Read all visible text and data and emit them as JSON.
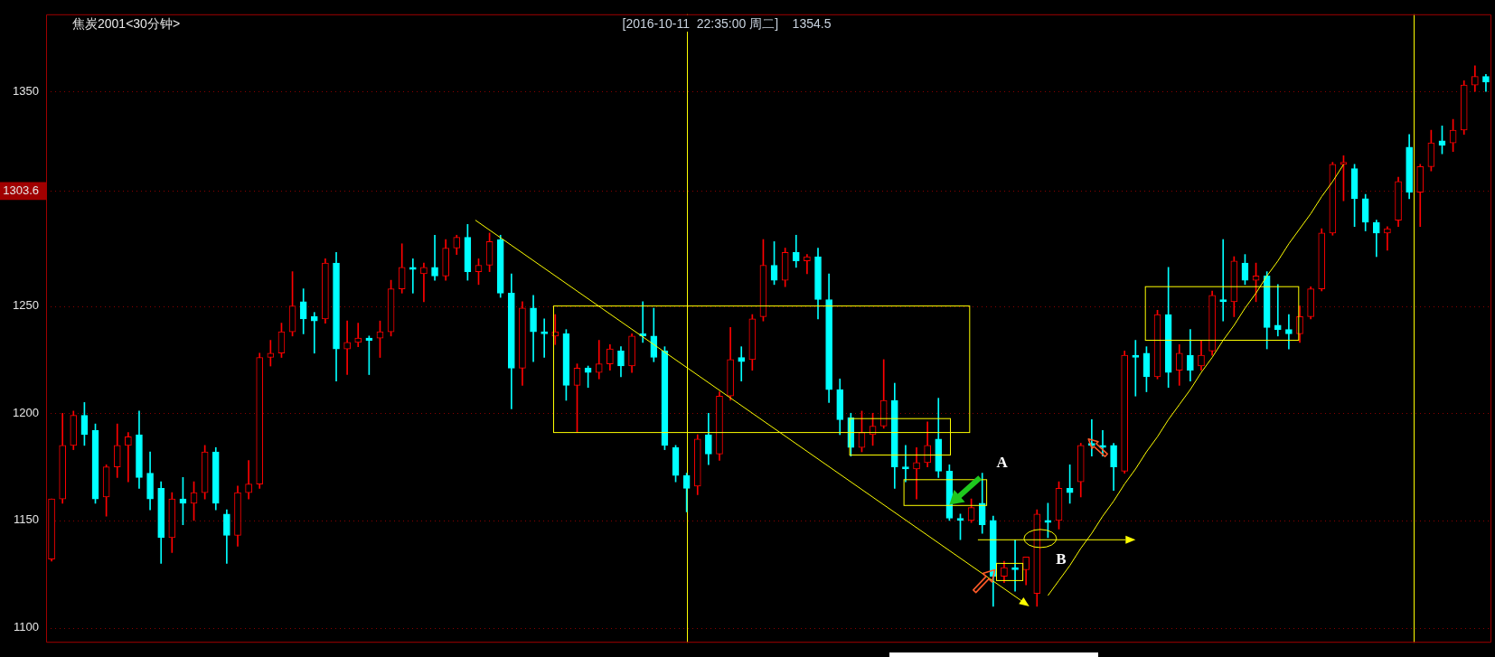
{
  "chart_data": {
    "type": "candlestick",
    "title": "焦炭2001<30分钟>",
    "subtitle": "[2016-10-11  22:35:00 周二]    1354.5",
    "categories": [
      null,
      null,
      null,
      null,
      null,
      null,
      null,
      null,
      null,
      null,
      null,
      null,
      null,
      null,
      null,
      null,
      null,
      null,
      null,
      null,
      null,
      null,
      null,
      null,
      null,
      null,
      null,
      null,
      null,
      null,
      null,
      null,
      null,
      null,
      null,
      null,
      null,
      null,
      null,
      null,
      null,
      null,
      null,
      null,
      null,
      null,
      null,
      null,
      null,
      null,
      null,
      null,
      null,
      null,
      null,
      null,
      null,
      null,
      null,
      null,
      null,
      null,
      null,
      null,
      null,
      null,
      null,
      null,
      null,
      null,
      null,
      null,
      null,
      null,
      null,
      null,
      null,
      null,
      null,
      null,
      null,
      null,
      null,
      null,
      null,
      null,
      null,
      null,
      null,
      null,
      null,
      null,
      null,
      null,
      null,
      null,
      null,
      null,
      null,
      null,
      null,
      null,
      null,
      null,
      null,
      null,
      null,
      null,
      null,
      null,
      null,
      null,
      null,
      null,
      null,
      null,
      null,
      null,
      null,
      null,
      null,
      null,
      null,
      null,
      null,
      null,
      null,
      null,
      null,
      null,
      null,
      null
    ],
    "ohlc": [
      [
        1132,
        1160,
        1131,
        1160
      ],
      [
        1160,
        1200,
        1158,
        1185
      ],
      [
        1185,
        1201,
        1183,
        1199
      ],
      [
        1199,
        1205,
        1185,
        1190
      ],
      [
        1192,
        1195,
        1158,
        1160
      ],
      [
        1161,
        1176,
        1152,
        1175
      ],
      [
        1175,
        1195,
        1170,
        1185
      ],
      [
        1185,
        1191,
        1168,
        1189
      ],
      [
        1190,
        1201,
        1165,
        1170
      ],
      [
        1172,
        1182,
        1155,
        1160
      ],
      [
        1165,
        1168,
        1130,
        1142
      ],
      [
        1142,
        1163,
        1135,
        1160
      ],
      [
        1160,
        1170,
        1148,
        1158
      ],
      [
        1158,
        1168,
        1150,
        1163
      ],
      [
        1163,
        1185,
        1160,
        1182
      ],
      [
        1182,
        1184,
        1155,
        1158
      ],
      [
        1153,
        1155,
        1130,
        1143
      ],
      [
        1143,
        1166,
        1138,
        1163
      ],
      [
        1163,
        1178,
        1160,
        1167
      ],
      [
        1167,
        1228,
        1165,
        1226
      ],
      [
        1226,
        1234,
        1222,
        1228
      ],
      [
        1228,
        1242,
        1226,
        1238
      ],
      [
        1238,
        1266,
        1236,
        1250
      ],
      [
        1252,
        1258,
        1237,
        1244
      ],
      [
        1245,
        1247,
        1228,
        1243
      ],
      [
        1244,
        1272,
        1242,
        1270
      ],
      [
        1270,
        1275,
        1215,
        1230
      ],
      [
        1230,
        1243,
        1218,
        1233
      ],
      [
        1233,
        1242,
        1231,
        1235
      ],
      [
        1235,
        1236,
        1218,
        1234
      ],
      [
        1235,
        1243,
        1226,
        1238
      ],
      [
        1238,
        1262,
        1236,
        1258
      ],
      [
        1258,
        1279,
        1256,
        1268
      ],
      [
        1268,
        1272,
        1256,
        1267
      ],
      [
        1265,
        1270,
        1252,
        1268
      ],
      [
        1268,
        1283,
        1262,
        1264
      ],
      [
        1264,
        1281,
        1262,
        1277
      ],
      [
        1277,
        1283,
        1274,
        1282
      ],
      [
        1282,
        1288,
        1262,
        1266
      ],
      [
        1266,
        1272,
        1260,
        1269
      ],
      [
        1269,
        1284,
        1266,
        1280
      ],
      [
        1281,
        1283,
        1254,
        1256
      ],
      [
        1256,
        1265,
        1202,
        1221
      ],
      [
        1221,
        1252,
        1213,
        1249
      ],
      [
        1249,
        1255,
        1224,
        1238
      ],
      [
        1238,
        1244,
        1226,
        1237
      ],
      [
        1236,
        1246,
        1232,
        1238
      ],
      [
        1237,
        1239,
        1206,
        1213
      ],
      [
        1213,
        1223,
        1191,
        1221
      ],
      [
        1221,
        1222,
        1212,
        1219
      ],
      [
        1219,
        1234,
        1216,
        1223
      ],
      [
        1223,
        1232,
        1220,
        1230
      ],
      [
        1229,
        1231,
        1217,
        1222
      ],
      [
        1222,
        1237,
        1219,
        1236
      ],
      [
        1237,
        1252,
        1233,
        1236
      ],
      [
        1236,
        1249,
        1224,
        1226
      ],
      [
        1229,
        1231,
        1183,
        1185
      ],
      [
        1184,
        1185,
        1168,
        1171
      ],
      [
        1171,
        1172,
        1154,
        1165
      ],
      [
        1166,
        1190,
        1162,
        1188
      ],
      [
        1190,
        1200,
        1176,
        1181
      ],
      [
        1181,
        1210,
        1178,
        1208
      ],
      [
        1208,
        1240,
        1206,
        1225
      ],
      [
        1226,
        1231,
        1215,
        1224
      ],
      [
        1225,
        1246,
        1220,
        1244
      ],
      [
        1245,
        1281,
        1243,
        1269
      ],
      [
        1269,
        1280,
        1260,
        1262
      ],
      [
        1262,
        1277,
        1259,
        1275
      ],
      [
        1275,
        1283,
        1268,
        1271
      ],
      [
        1271,
        1274,
        1265,
        1273
      ],
      [
        1273,
        1277,
        1244,
        1253
      ],
      [
        1253,
        1265,
        1205,
        1211
      ],
      [
        1211,
        1216,
        1190,
        1197
      ],
      [
        1198,
        1200,
        1180,
        1184
      ],
      [
        1184,
        1201,
        1182,
        1191
      ],
      [
        1190,
        1200,
        1185,
        1194
      ],
      [
        1194,
        1225,
        1193,
        1206
      ],
      [
        1206,
        1214,
        1165,
        1175
      ],
      [
        1175,
        1185,
        1168,
        1174
      ],
      [
        1174,
        1184,
        1160,
        1177
      ],
      [
        1177,
        1196,
        1175,
        1185
      ],
      [
        1188,
        1207,
        1170,
        1173
      ],
      [
        1173,
        1176,
        1150,
        1151
      ],
      [
        1151,
        1153,
        1141,
        1150
      ],
      [
        1150,
        1160,
        1149,
        1156
      ],
      [
        1158,
        1172,
        1144,
        1148
      ],
      [
        1150,
        1152,
        1110,
        1124
      ],
      [
        1124,
        1131,
        1121,
        1128
      ],
      [
        1128,
        1141,
        1117,
        1127
      ],
      [
        1127,
        1133,
        1120,
        1133
      ],
      [
        1116,
        1155,
        1110,
        1153
      ],
      [
        1150,
        1158,
        1142,
        1149
      ],
      [
        1150,
        1168,
        1146,
        1165
      ],
      [
        1165,
        1176,
        1158,
        1163
      ],
      [
        1168,
        1186,
        1161,
        1185
      ],
      [
        1186,
        1197,
        1180,
        1185
      ],
      [
        1185,
        1192,
        1180,
        1184
      ],
      [
        1185,
        1186,
        1164,
        1175
      ],
      [
        1173,
        1229,
        1172,
        1227
      ],
      [
        1227,
        1234,
        1208,
        1226
      ],
      [
        1228,
        1231,
        1210,
        1217
      ],
      [
        1217,
        1248,
        1216,
        1246
      ],
      [
        1246,
        1268,
        1212,
        1219
      ],
      [
        1220,
        1232,
        1213,
        1228
      ],
      [
        1227,
        1239,
        1215,
        1220
      ],
      [
        1222,
        1234,
        1220,
        1227
      ],
      [
        1229,
        1257,
        1227,
        1255
      ],
      [
        1253,
        1281,
        1243,
        1252
      ],
      [
        1252,
        1273,
        1245,
        1271
      ],
      [
        1270,
        1274,
        1260,
        1262
      ],
      [
        1262,
        1270,
        1252,
        1264
      ],
      [
        1264,
        1266,
        1230,
        1240
      ],
      [
        1241,
        1260,
        1236,
        1239
      ],
      [
        1239,
        1246,
        1230,
        1237
      ],
      [
        1237,
        1250,
        1233,
        1245
      ],
      [
        1245,
        1259,
        1244,
        1258
      ],
      [
        1258,
        1286,
        1257,
        1284
      ],
      [
        1284,
        1317,
        1283,
        1316
      ],
      [
        1316,
        1320,
        1299,
        1317
      ],
      [
        1314,
        1316,
        1287,
        1300
      ],
      [
        1300,
        1302,
        1285,
        1289
      ],
      [
        1289,
        1290,
        1273,
        1284
      ],
      [
        1284,
        1287,
        1276,
        1286
      ],
      [
        1290,
        1310,
        1287,
        1308
      ],
      [
        1324,
        1330,
        1300,
        1303
      ],
      [
        1303,
        1316,
        1287,
        1315
      ],
      [
        1315,
        1332,
        1313,
        1326
      ],
      [
        1327,
        1334,
        1321,
        1325
      ],
      [
        1326,
        1337,
        1322,
        1332
      ],
      [
        1332,
        1355,
        1330,
        1353
      ],
      [
        1353,
        1362,
        1350,
        1357
      ],
      [
        1357,
        1358,
        1350,
        1354.5
      ]
    ],
    "colors": [
      "#ff0000",
      "#ff0000",
      "#ff0000",
      "#00ffff",
      "#00ffff",
      "#ff0000",
      "#ff0000",
      "#ff0000",
      "#00ffff",
      "#00ffff",
      "#00ffff",
      "#ff0000",
      "#00ffff",
      "#ff0000",
      "#ff0000",
      "#00ffff",
      "#00ffff",
      "#ff0000",
      "#ff0000",
      "#ff0000",
      "#ff0000",
      "#ff0000",
      "#ff0000",
      "#00ffff",
      "#00ffff",
      "#ff0000",
      "#00ffff",
      "#ff0000",
      "#ff0000",
      "#00ffff",
      "#ff0000",
      "#ff0000",
      "#ff0000",
      "#00ffff",
      "#ff0000",
      "#00ffff",
      "#ff0000",
      "#ff0000",
      "#00ffff",
      "#ff0000",
      "#ff0000",
      "#00ffff",
      "#00ffff",
      "#ff0000",
      "#00ffff",
      "#00ffff",
      "#ff0000",
      "#00ffff",
      "#ff0000",
      "#00ffff",
      "#ff0000",
      "#ff0000",
      "#00ffff",
      "#ff0000",
      "#00ffff",
      "#00ffff",
      "#00ffff",
      "#00ffff",
      "#00ffff",
      "#ff0000",
      "#00ffff",
      "#ff0000",
      "#ff0000",
      "#00ffff",
      "#ff0000",
      "#ff0000",
      "#00ffff",
      "#ff0000",
      "#00ffff",
      "#ff0000",
      "#00ffff",
      "#00ffff",
      "#00ffff",
      "#00ffff",
      "#ff0000",
      "#ff0000",
      "#ff0000",
      "#00ffff",
      "#00ffff",
      "#ff0000",
      "#ff0000",
      "#00ffff",
      "#00ffff",
      "#00ffff",
      "#ff0000",
      "#00ffff",
      "#00ffff",
      "#ff0000",
      "#00ffff",
      "#ff0000",
      "#ff0000",
      "#00ffff",
      "#ff0000",
      "#00ffff",
      "#ff0000",
      "#00ffff",
      "#00ffff",
      "#00ffff",
      "#ff0000",
      "#00ffff",
      "#00ffff",
      "#ff0000",
      "#00ffff",
      "#ff0000",
      "#00ffff",
      "#ff0000",
      "#ff0000",
      "#00ffff",
      "#ff0000",
      "#00ffff",
      "#ff0000",
      "#00ffff",
      "#00ffff",
      "#00ffff",
      "#ff0000",
      "#ff0000",
      "#ff0000",
      "#ff0000",
      "#ff0000",
      "#00ffff",
      "#00ffff",
      "#00ffff",
      "#ff0000",
      "#ff0000",
      "#00ffff",
      "#ff0000",
      "#ff0000",
      "#00ffff",
      "#ff0000",
      "#ff0000",
      "#ff0000",
      "#00ffff"
    ],
    "series": [
      {
        "type": "line",
        "color": "#ffff00",
        "values": [
          null,
          null,
          null,
          null,
          null,
          null,
          null,
          null,
          null,
          null,
          null,
          null,
          null,
          null,
          null,
          null,
          null,
          null,
          null,
          null,
          null,
          null,
          null,
          null,
          null,
          null,
          null,
          null,
          null,
          null,
          null,
          null,
          null,
          null,
          null,
          null,
          null,
          null,
          null,
          null,
          null,
          null,
          null,
          null,
          null,
          null,
          null,
          null,
          null,
          null,
          null,
          null,
          null,
          null,
          null,
          null,
          null,
          null,
          null,
          null,
          null,
          null,
          null,
          null,
          null,
          null,
          null,
          null,
          null,
          null,
          null,
          null,
          null,
          null,
          null,
          null,
          null,
          null,
          null,
          null,
          null,
          null,
          null,
          null,
          null,
          null,
          null,
          null,
          null,
          null,
          null,
          1115,
          1122,
          1129,
          1137,
          1144,
          1152,
          1159,
          1167,
          1174,
          1182,
          1189,
          1197,
          1204,
          1211,
          1219,
          1226,
          1234,
          1241,
          1249,
          1256,
          1264,
          1271,
          1279,
          1286,
          1293,
          1301,
          1308,
          1316,
          null,
          null,
          null,
          null,
          null,
          null,
          null,
          null,
          null,
          null,
          null,
          null,
          null
        ]
      }
    ],
    "annotations": [
      "A",
      "B"
    ],
    "ylim": [
      1093,
      1386
    ],
    "yticks": [
      1100,
      1150,
      1200,
      1250,
      1303.6,
      1350
    ],
    "grid": "y",
    "tick_labels": "y"
  }
}
